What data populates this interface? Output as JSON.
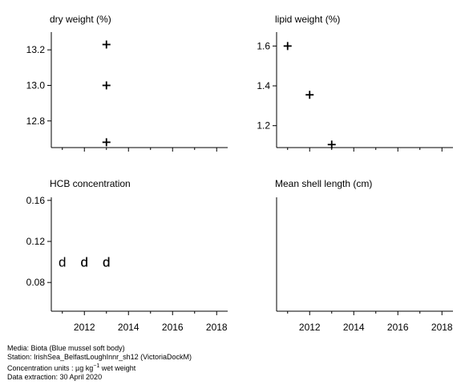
{
  "chart_data": [
    {
      "type": "scatter",
      "title": "dry weight (%)",
      "marker": "+",
      "x": [
        2013,
        2013,
        2013
      ],
      "y": [
        13.23,
        13.0,
        12.68
      ],
      "xlim": [
        2010.5,
        2018.5
      ],
      "ylim": [
        12.65,
        13.3
      ],
      "xticks": [
        2012,
        2014,
        2016,
        2018
      ],
      "yticks": [
        12.8,
        13.0,
        13.2
      ],
      "ytick_labels": [
        "12.8",
        "13.0",
        "13.2"
      ],
      "show_xtick_labels": false
    },
    {
      "type": "scatter",
      "title": "lipid weight (%)",
      "marker": "+",
      "x": [
        2011,
        2012,
        2013
      ],
      "y": [
        1.6,
        1.355,
        1.105
      ],
      "xlim": [
        2010.5,
        2018.5
      ],
      "ylim": [
        1.09,
        1.67
      ],
      "xticks": [
        2012,
        2014,
        2016,
        2018
      ],
      "yticks": [
        1.2,
        1.4,
        1.6
      ],
      "ytick_labels": [
        "1.2",
        "1.4",
        "1.6"
      ],
      "show_xtick_labels": false
    },
    {
      "type": "scatter",
      "title": "HCB concentration",
      "marker": "d",
      "x": [
        2011,
        2012,
        2012,
        2013,
        2013
      ],
      "y": [
        0.1,
        0.1,
        0.1,
        0.1,
        0.1
      ],
      "xlim": [
        2010.5,
        2018.5
      ],
      "ylim": [
        0.052,
        0.163
      ],
      "xticks": [
        2012,
        2014,
        2016,
        2018
      ],
      "yticks": [
        0.08,
        0.12,
        0.16
      ],
      "ytick_labels": [
        "0.08",
        "0.12",
        "0.16"
      ],
      "show_xtick_labels": true
    },
    {
      "type": "scatter",
      "title": "Mean shell length (cm)",
      "marker": "",
      "x": [],
      "y": [],
      "xlim": [
        2010.5,
        2018.5
      ],
      "ylim": [
        0,
        1
      ],
      "xticks": [
        2012,
        2014,
        2016,
        2018
      ],
      "yticks": [],
      "ytick_labels": [],
      "show_xtick_labels": true
    }
  ],
  "footer": {
    "media": "Media: Biota (Blue mussel soft body)",
    "station": "Station: IrishSea_BelfastLoughInnr_sh12 (VictoriaDockM)",
    "units_prefix": "Concentration units : µg kg",
    "units_sup": "−1",
    "units_suffix": " wet weight",
    "extraction": "Data extraction: 30 April 2020"
  }
}
